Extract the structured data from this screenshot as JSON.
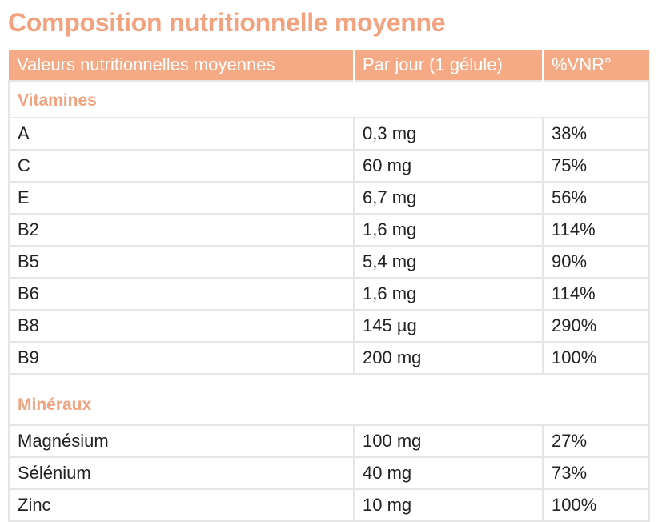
{
  "title": "Composition nutritionnelle moyenne",
  "headers": [
    "Valeurs nutritionnelles moyennes",
    "Par jour (1 gélule)",
    "%VNR°"
  ],
  "sections": [
    {
      "name": "Vitamines",
      "rows": [
        [
          "A",
          "0,3 mg",
          "38%"
        ],
        [
          "C",
          "60 mg",
          "75%"
        ],
        [
          "E",
          "6,7 mg",
          "56%"
        ],
        [
          "B2",
          "1,6 mg",
          "114%"
        ],
        [
          "B5",
          "5,4 mg",
          "90%"
        ],
        [
          "B6",
          "1,6 mg",
          "114%"
        ],
        [
          "B8",
          "145 µg",
          "290%"
        ],
        [
          "B9",
          "200 mg",
          "100%"
        ]
      ]
    },
    {
      "name": "Minéraux",
      "rows": [
        [
          "Magnésium",
          "100 mg",
          "27%"
        ],
        [
          "Sélénium",
          "40 mg",
          "73%"
        ],
        [
          "Zinc",
          "10 mg",
          "100%"
        ]
      ]
    }
  ],
  "colors": {
    "accent": "#f2a27e",
    "header_bg": "#f5aa85",
    "border": "#e6e6e6"
  }
}
